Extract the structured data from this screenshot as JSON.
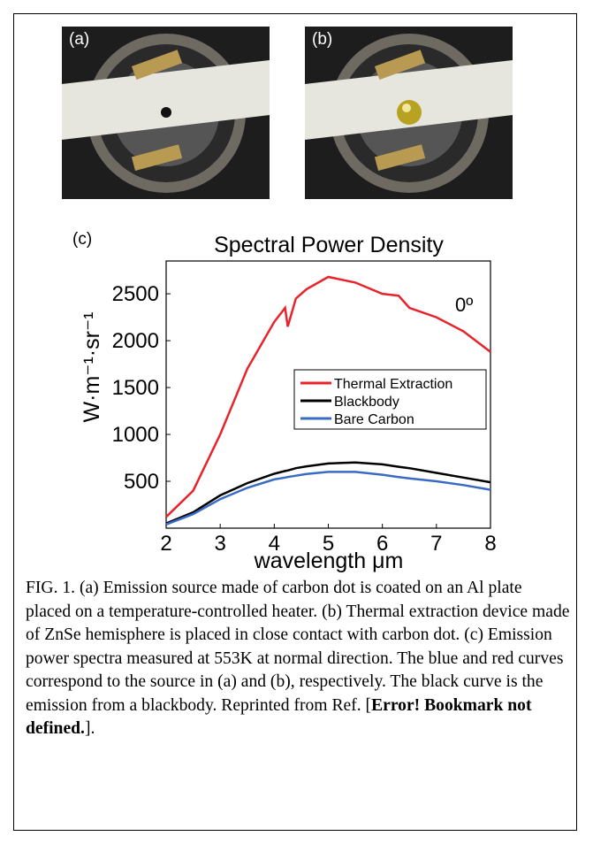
{
  "panel_labels": [
    "(a)",
    "(b)"
  ],
  "chart_data": {
    "type": "line",
    "panel_label": "(c)",
    "title": "Spectral Power Density",
    "annotation": "0º",
    "x_label": "wavelength μm",
    "y_label": "W·m⁻¹·sr⁻¹",
    "x": [
      2,
      2.5,
      3,
      3.5,
      4,
      4.2,
      4.25,
      4.4,
      4.6,
      5,
      5.5,
      6,
      6.3,
      6.5,
      7,
      7.5,
      8
    ],
    "series": [
      {
        "name": "Thermal Extraction",
        "color": "#e8232b",
        "values": [
          120,
          400,
          1000,
          1700,
          2200,
          2350,
          2150,
          2450,
          2550,
          2680,
          2620,
          2500,
          2480,
          2350,
          2250,
          2100,
          1880
        ]
      },
      {
        "name": "Blackbody",
        "color": "#000000",
        "values": [
          50,
          170,
          350,
          480,
          580,
          610,
          615,
          640,
          660,
          690,
          700,
          680,
          655,
          640,
          590,
          540,
          490
        ]
      },
      {
        "name": "Bare Carbon",
        "color": "#3a6bc4",
        "values": [
          40,
          150,
          310,
          430,
          520,
          540,
          545,
          560,
          578,
          600,
          600,
          570,
          545,
          530,
          500,
          460,
          410
        ]
      }
    ],
    "xlim": [
      2,
      8
    ],
    "xticks": [
      2,
      3,
      4,
      5,
      6,
      7,
      8
    ],
    "ylim": [
      0,
      2850
    ],
    "yticks": [
      500,
      1000,
      1500,
      2000,
      2500
    ]
  },
  "caption": {
    "text": "FIG. 1. (a) Emission source made of carbon dot is coated on an Al plate placed on a temperature-controlled heater. (b) Thermal extraction device made of ZnSe hemisphere is placed in close contact with carbon dot. (c) Emission power spectra measured at 553K at normal direction. The blue and red curves correspond to the source in (a) and (b), respectively. The black curve is the emission from a blackbody. Reprinted from Ref. [",
    "bold": "Error! Bookmark not defined.",
    "end": "]."
  }
}
